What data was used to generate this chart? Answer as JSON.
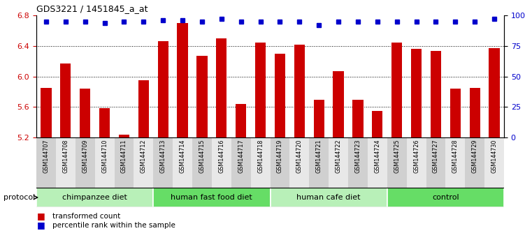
{
  "title": "GDS3221 / 1451845_a_at",
  "samples": [
    "GSM144707",
    "GSM144708",
    "GSM144709",
    "GSM144710",
    "GSM144711",
    "GSM144712",
    "GSM144713",
    "GSM144714",
    "GSM144715",
    "GSM144716",
    "GSM144717",
    "GSM144718",
    "GSM144719",
    "GSM144720",
    "GSM144721",
    "GSM144722",
    "GSM144723",
    "GSM144724",
    "GSM144725",
    "GSM144726",
    "GSM144727",
    "GSM144728",
    "GSM144729",
    "GSM144730"
  ],
  "bar_values": [
    5.85,
    6.17,
    5.84,
    5.58,
    5.24,
    5.95,
    6.46,
    6.7,
    6.27,
    6.5,
    5.64,
    6.44,
    6.3,
    6.42,
    5.69,
    6.07,
    5.69,
    5.55,
    6.44,
    6.36,
    6.33,
    5.84,
    5.85,
    6.37
  ],
  "pct_right_vals": [
    95,
    95,
    95,
    94,
    95,
    95,
    96,
    96,
    95,
    97,
    95,
    95,
    95,
    95,
    92,
    95,
    95,
    95,
    95,
    95,
    95,
    95,
    95,
    97
  ],
  "bar_color": "#cc0000",
  "dot_color": "#0000cc",
  "ylim_left": [
    5.2,
    6.8
  ],
  "ylim_right": [
    0,
    100
  ],
  "yticks_left": [
    5.2,
    5.6,
    6.0,
    6.4,
    6.8
  ],
  "ytick_labels_right": [
    "0",
    "25",
    "50",
    "75",
    "100%"
  ],
  "groups": [
    {
      "label": "chimpanzee diet",
      "start": 0,
      "end": 6,
      "color": "#b8f0b8"
    },
    {
      "label": "human fast food diet",
      "start": 6,
      "end": 12,
      "color": "#66dd66"
    },
    {
      "label": "human cafe diet",
      "start": 12,
      "end": 18,
      "color": "#b8f0b8"
    },
    {
      "label": "control",
      "start": 18,
      "end": 24,
      "color": "#66dd66"
    }
  ],
  "group_row_label": "protocol",
  "bar_width": 0.55,
  "background_color": "#ffffff",
  "tick_color_left": "#cc0000",
  "tick_color_right": "#0000cc"
}
